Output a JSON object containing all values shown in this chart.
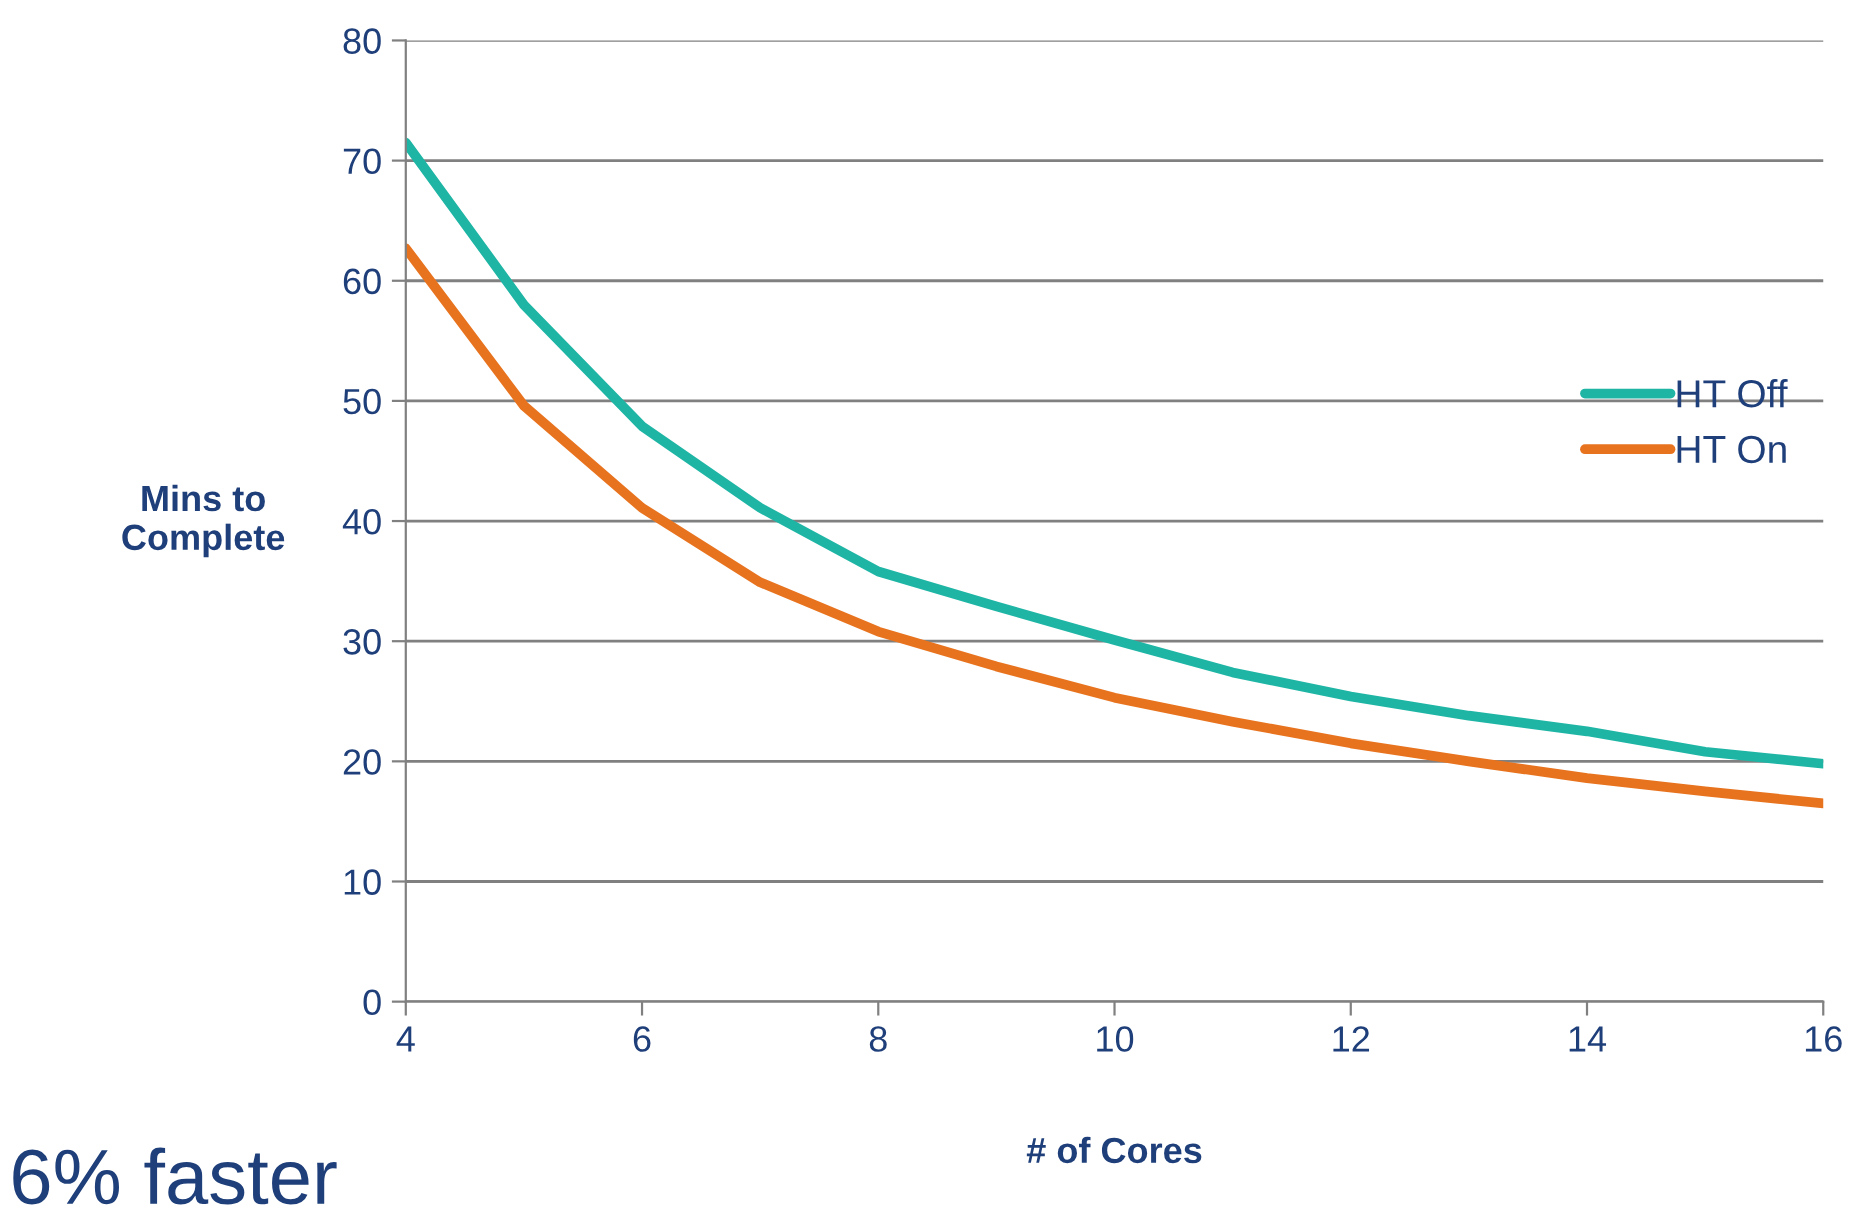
{
  "chart_data": {
    "type": "line",
    "xlabel": "# of Cores",
    "ylabel": "Mins to\nComplete",
    "x": [
      4,
      5,
      6,
      7,
      8,
      9,
      10,
      11,
      12,
      13,
      14,
      15,
      16
    ],
    "series": [
      {
        "name": "HT Off",
        "color": "#1fb5a5",
        "values": [
          71.5,
          58.0,
          47.9,
          41.1,
          35.8,
          32.9,
          30.1,
          27.4,
          25.4,
          23.8,
          22.5,
          20.8,
          19.8
        ]
      },
      {
        "name": "HT On",
        "color": "#e8731f",
        "values": [
          62.7,
          49.6,
          41.1,
          34.9,
          30.8,
          27.9,
          25.3,
          23.3,
          21.5,
          20.0,
          18.6,
          17.5,
          16.5
        ]
      }
    ],
    "xlim": [
      4,
      16
    ],
    "xticks": [
      4,
      6,
      8,
      10,
      12,
      14,
      16
    ],
    "ylim": [
      0,
      80
    ],
    "yticks": [
      0,
      10,
      20,
      30,
      40,
      50,
      60,
      70,
      80
    ],
    "grid": "y",
    "legend": "right",
    "marker": "none",
    "line_style": "solid",
    "annotations": [
      "6% faster"
    ]
  }
}
